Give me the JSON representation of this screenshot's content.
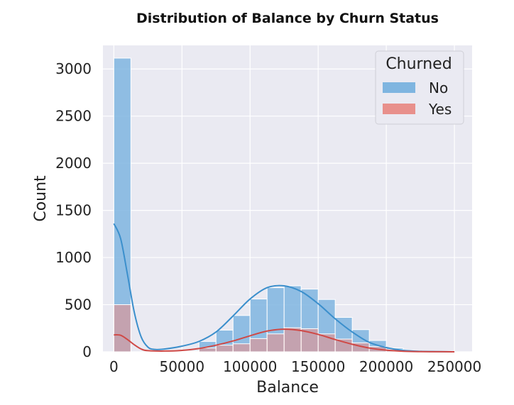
{
  "chart_data": {
    "type": "bar",
    "title": "Distribution of Balance by Churn Status",
    "xlabel": "Balance",
    "ylabel": "Count",
    "xlim": [
      -8000,
      263000
    ],
    "ylim": [
      0,
      3250
    ],
    "x_ticks": [
      0,
      50000,
      100000,
      150000,
      200000,
      250000
    ],
    "y_ticks": [
      0,
      500,
      1000,
      1500,
      2000,
      2500,
      3000
    ],
    "grid": true,
    "legend": {
      "title": "Churned",
      "placement": "top-right"
    },
    "bin_edges": [
      0,
      12500,
      25000,
      37500,
      50000,
      62500,
      75000,
      87500,
      100000,
      112500,
      125000,
      137500,
      150000,
      162500,
      175000,
      187500,
      200000,
      212500,
      225000,
      237500,
      250000
    ],
    "series": [
      {
        "name": "No",
        "color": "#7fb5e0",
        "line_color": "#3b8fcc",
        "values": [
          3115,
          0,
          0,
          0,
          5,
          110,
          230,
          385,
          560,
          680,
          700,
          665,
          555,
          365,
          235,
          120,
          40,
          10,
          5,
          0
        ],
        "kde": [
          [
            0,
            1360
          ],
          [
            5000,
            1200
          ],
          [
            10000,
            820
          ],
          [
            15000,
            420
          ],
          [
            20000,
            160
          ],
          [
            25000,
            50
          ],
          [
            30000,
            25
          ],
          [
            37500,
            30
          ],
          [
            50000,
            60
          ],
          [
            62500,
            110
          ],
          [
            75000,
            210
          ],
          [
            87500,
            380
          ],
          [
            100000,
            560
          ],
          [
            112500,
            680
          ],
          [
            125000,
            700
          ],
          [
            137500,
            640
          ],
          [
            150000,
            510
          ],
          [
            162500,
            350
          ],
          [
            175000,
            210
          ],
          [
            187500,
            100
          ],
          [
            200000,
            45
          ],
          [
            212500,
            15
          ],
          [
            225000,
            5
          ],
          [
            237500,
            2
          ],
          [
            250000,
            0
          ]
        ]
      },
      {
        "name": "Yes",
        "color": "#e8908c",
        "line_color": "#cf4946",
        "values": [
          500,
          0,
          0,
          0,
          0,
          40,
          70,
          85,
          140,
          190,
          255,
          245,
          190,
          135,
          95,
          55,
          25,
          10,
          5,
          0
        ],
        "kde": [
          [
            0,
            180
          ],
          [
            5000,
            175
          ],
          [
            10000,
            130
          ],
          [
            15000,
            75
          ],
          [
            20000,
            30
          ],
          [
            25000,
            12
          ],
          [
            37500,
            8
          ],
          [
            50000,
            15
          ],
          [
            62500,
            35
          ],
          [
            75000,
            70
          ],
          [
            87500,
            115
          ],
          [
            100000,
            170
          ],
          [
            112500,
            220
          ],
          [
            125000,
            240
          ],
          [
            137500,
            225
          ],
          [
            150000,
            185
          ],
          [
            162500,
            130
          ],
          [
            175000,
            80
          ],
          [
            187500,
            40
          ],
          [
            200000,
            18
          ],
          [
            212500,
            6
          ],
          [
            225000,
            2
          ],
          [
            237500,
            1
          ],
          [
            250000,
            0
          ]
        ]
      }
    ]
  }
}
